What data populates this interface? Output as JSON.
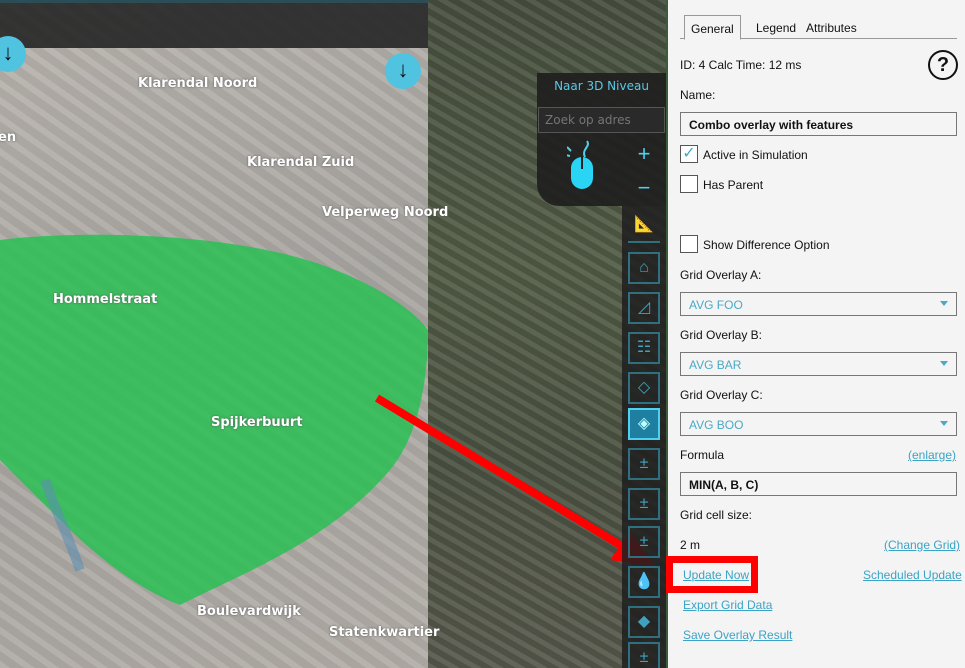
{
  "map": {
    "labels": [
      "Klarendal Noord",
      "Klarendal Zuid",
      "Velperweg Noord",
      "Hommelstraat",
      "Spijkerbuurt",
      "Boulevardwijk",
      "Statenkwartier",
      "en"
    ],
    "nav_button": "Naar 3D Niveau",
    "search_placeholder": "Zoek op adres",
    "zoom_in": "+",
    "zoom_out": "−",
    "overlay_color": "#22c24f",
    "arrow_color": "#ff0000",
    "tools": [
      "ruler-icon",
      "house-icon",
      "terrain-icon",
      "sign-icon",
      "plane-icon",
      "layer-active-icon",
      "plus-minus-icon",
      "plus-minus-icon",
      "plus-minus-icon",
      "droplets-icon",
      "layer-icon",
      "plus-minus-icon"
    ]
  },
  "panel": {
    "tabs": [
      "General",
      "Legend",
      "Attributes"
    ],
    "selected_tab": "General",
    "id_line": "ID: 4 Calc Time: 12 ms",
    "help": "?",
    "name_label": "Name:",
    "name_value": "Combo overlay with features",
    "active_label": "Active in Simulation",
    "active_checked": true,
    "check": "✓",
    "parent_label": "Has Parent",
    "parent_checked": false,
    "diff_label": "Show Difference Option",
    "diff_checked": false,
    "grid_a_label": "Grid Overlay A:",
    "grid_a_value": "AVG FOO",
    "grid_b_label": "Grid Overlay B:",
    "grid_b_value": "AVG BAR",
    "grid_c_label": "Grid Overlay C:",
    "grid_c_value": "AVG BOO",
    "formula_label": "Formula",
    "enlarge": "(enlarge)",
    "formula_value": "MIN(A, B, C)",
    "cell_label": "Grid cell size:",
    "cell_value": "2 m",
    "change_grid": "(Change Grid)",
    "update_now": "Update Now",
    "scheduled_update": "Scheduled Update",
    "export": "Export Grid Data",
    "save": "Save Overlay Result",
    "accent": "#3aa3c6"
  }
}
